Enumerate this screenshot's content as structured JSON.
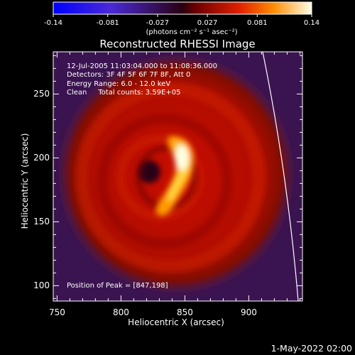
{
  "chart_data": {
    "type": "heatmap",
    "title": "Reconstructed RHESSI Image",
    "xlabel": "Heliocentric X (arcsec)",
    "ylabel": "Heliocentric Y (arcsec)",
    "xlim": [
      747,
      942
    ],
    "ylim": [
      88,
      283
    ],
    "x_ticks": [
      "750",
      "800",
      "850",
      "900"
    ],
    "y_ticks": [
      "100",
      "150",
      "200",
      "250"
    ],
    "colorbar": {
      "min": -0.14,
      "max": 0.14,
      "ticks": [
        "-0.14",
        "-0.081",
        "-0.027",
        "0.027",
        "0.081",
        "0.14"
      ],
      "tick_values": [
        -0.14,
        -0.081,
        -0.027,
        0.027,
        0.081,
        0.14
      ],
      "units": "(photons cm⁻² s⁻¹ asec⁻²)"
    },
    "annotations": [
      "12-Jul-2005 11:03:04.000 to 11:08:36.000",
      "Detectors: 3F 4F 5F 6F 7F 8F, Att 0",
      "Energy Range: 6.0 - 12.0 keV",
      "Clean     Total counts: 3.59E+05"
    ],
    "peak_label": "Position of Peak = [847,198]",
    "peak": [
      847,
      198
    ],
    "colors": {
      "background": "#000000",
      "foreground": "#ffffff"
    }
  },
  "footer": "1-May-2022 02:00"
}
